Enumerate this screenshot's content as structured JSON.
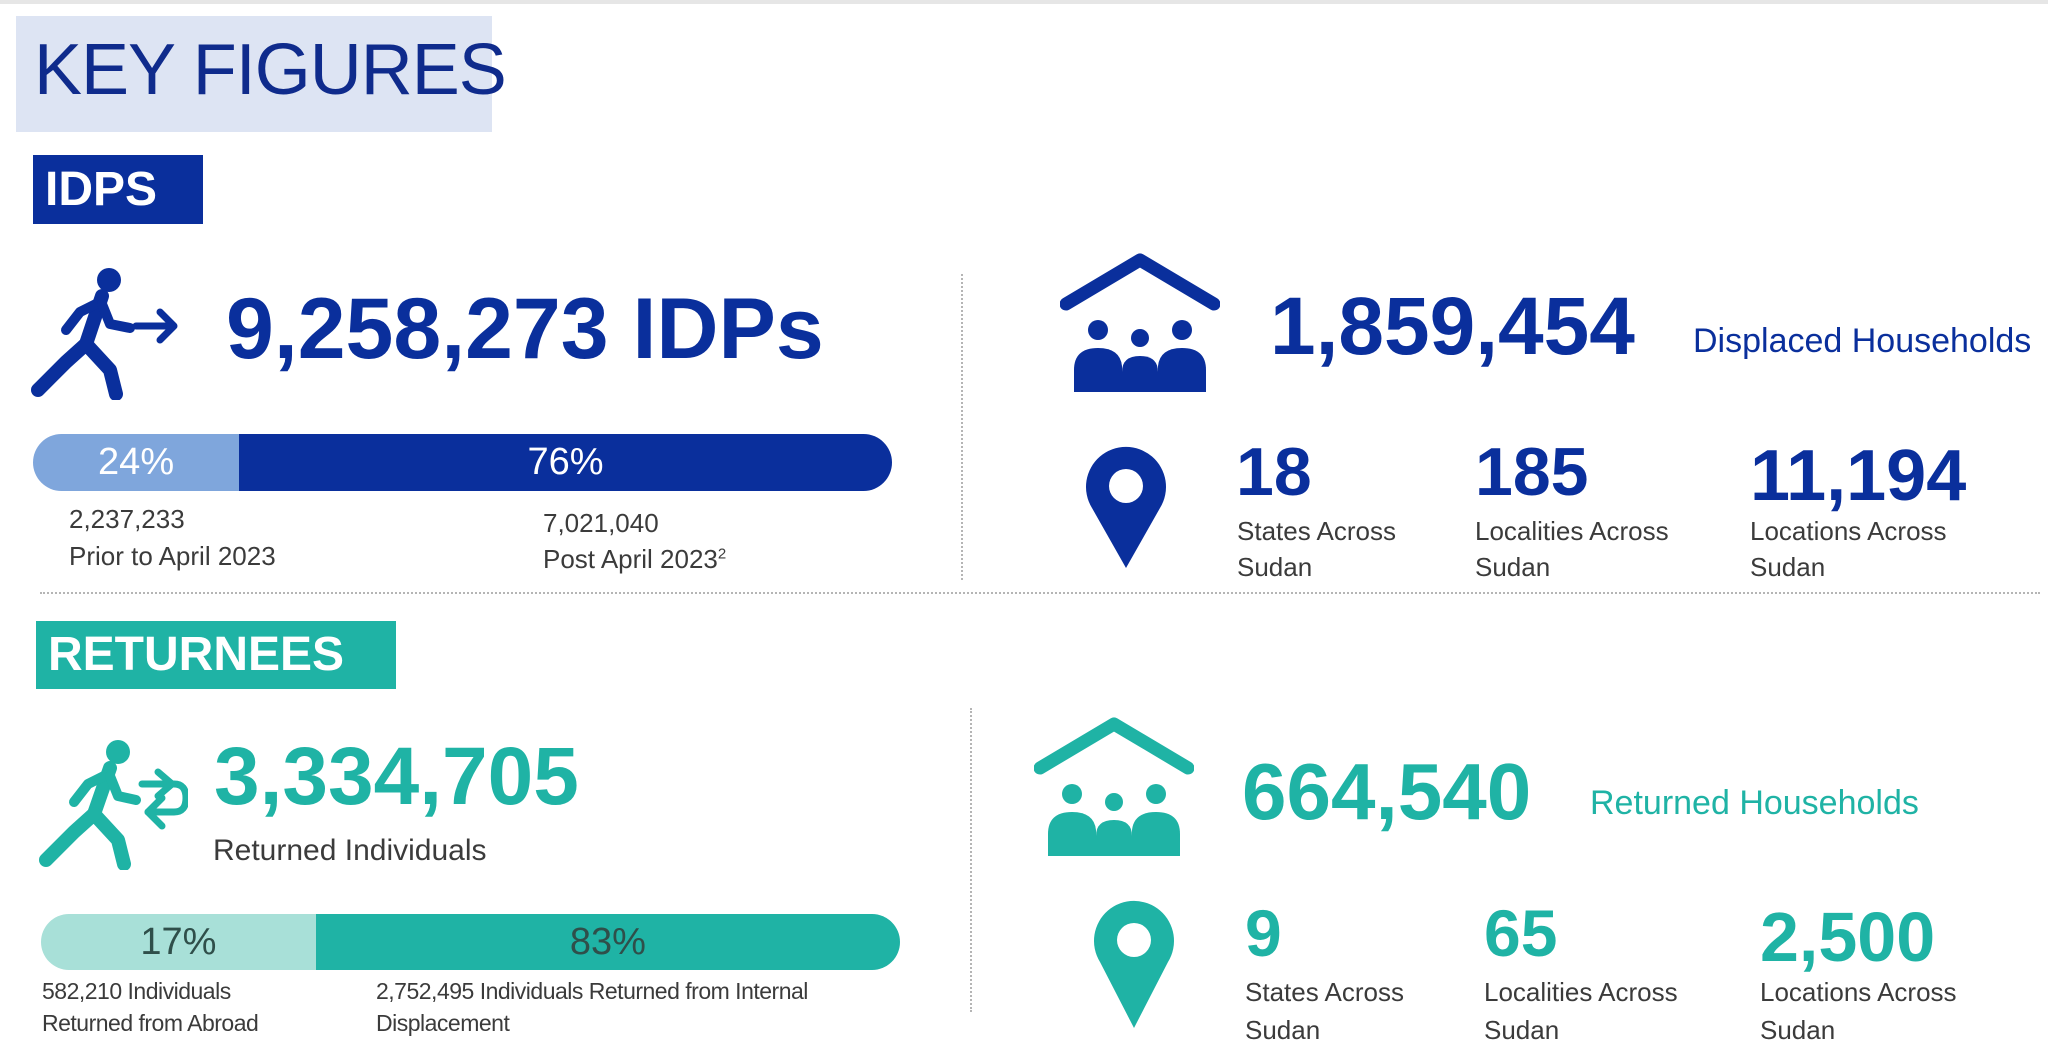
{
  "title": "KEY FIGURES",
  "colors": {
    "navy": "#0a2f9c",
    "navy_light": "#7fa6dc",
    "teal": "#1fb3a5",
    "teal_light": "#a8e0d8"
  },
  "idps": {
    "tag": "IDPS",
    "total": "9,258,273 IDPs",
    "bar": {
      "left_pct": "24%",
      "right_pct": "76%",
      "left_fraction": 0.24,
      "right_fraction": 0.76
    },
    "left_value": "2,237,233",
    "left_label": "Prior to April 2023",
    "right_value": "7,021,040",
    "right_label": "Post April 2023",
    "right_label_footnote": "2",
    "households_value": "1,859,454",
    "households_label": "Displaced Households",
    "stats": [
      {
        "value": "18",
        "line1": "States Across",
        "line2": "Sudan"
      },
      {
        "value": "185",
        "line1": "Localities Across",
        "line2": "Sudan"
      },
      {
        "value": "11,194",
        "line1": "Locations Across",
        "line2": "Sudan"
      }
    ],
    "icons": {
      "person": "walking-person-arrow-icon",
      "house": "house-family-icon",
      "pin": "location-pin-icon"
    }
  },
  "returnees": {
    "tag": "RETURNEES",
    "total": "3,334,705",
    "total_label": "Returned Individuals",
    "bar": {
      "left_pct": "17%",
      "right_pct": "83%",
      "left_fraction": 0.17,
      "right_fraction": 0.83
    },
    "left_line1": "582,210 Individuals",
    "left_line2": "Returned from Abroad",
    "right_line1": "2,752,495 Individuals Returned from Internal",
    "right_line2": "Displacement",
    "households_value": "664,540",
    "households_label": "Returned Households",
    "stats": [
      {
        "value": "9",
        "line1": "States Across",
        "line2": "Sudan"
      },
      {
        "value": "65",
        "line1": "Localities Across",
        "line2": "Sudan"
      },
      {
        "value": "2,500",
        "line1": "Locations Across",
        "line2": "Sudan"
      }
    ],
    "icons": {
      "person": "walking-person-return-icon",
      "house": "house-family-icon",
      "pin": "location-pin-icon"
    }
  }
}
